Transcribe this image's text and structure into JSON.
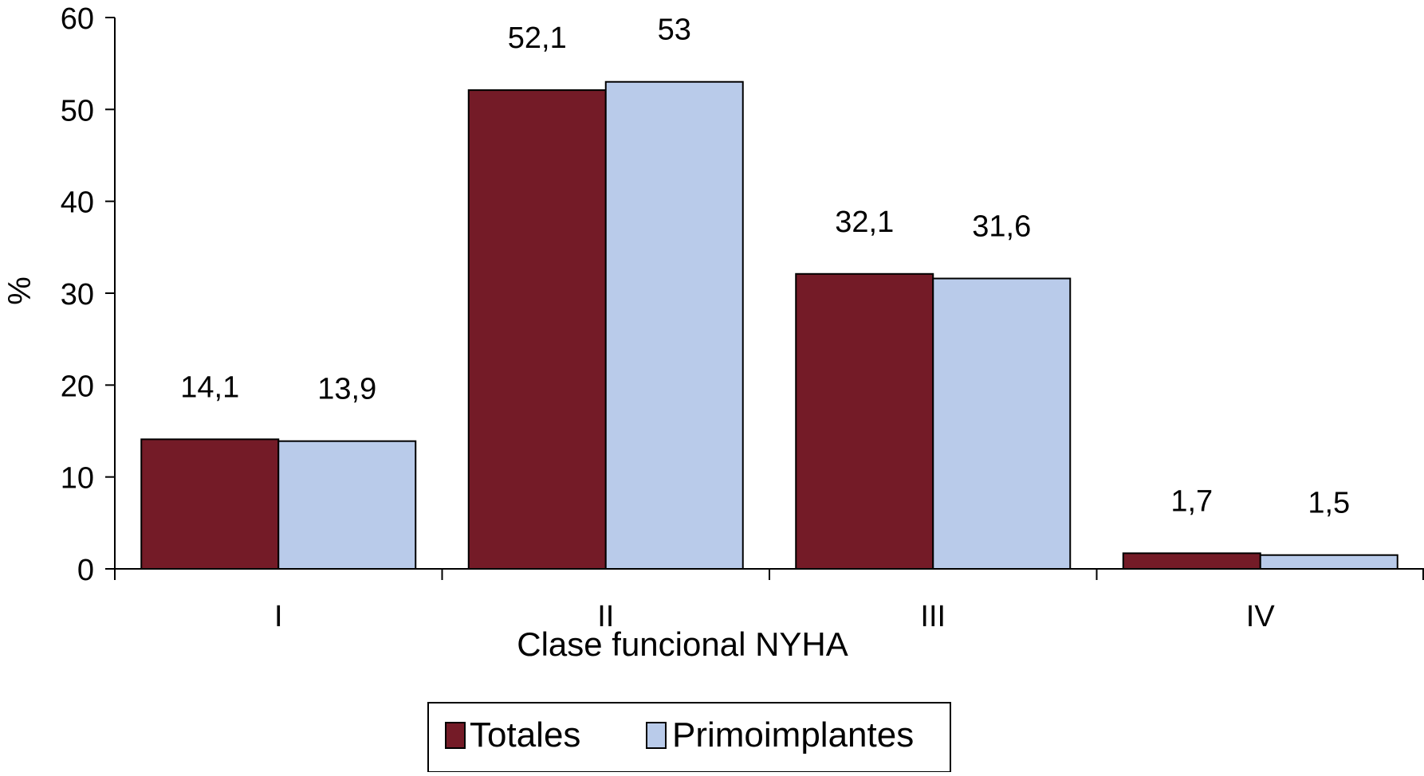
{
  "chart_data": {
    "type": "bar",
    "title": "",
    "xlabel": "Clase funcional NYHA",
    "ylabel": "%",
    "categories": [
      "I",
      "II",
      "III",
      "IV"
    ],
    "series": [
      {
        "name": "Totales",
        "color": "#741b27",
        "values": [
          14.1,
          52.1,
          32.1,
          1.7
        ],
        "labels": [
          "14,1",
          "52,1",
          "32,1",
          "1,7"
        ]
      },
      {
        "name": "Primoimplantes",
        "color": "#b9cbea",
        "values": [
          13.9,
          53,
          31.6,
          1.5
        ],
        "labels": [
          "13,9",
          "53",
          "31,6",
          "1,5"
        ]
      }
    ],
    "ylim": [
      0,
      60
    ],
    "yticks": [
      0,
      10,
      20,
      30,
      40,
      50,
      60
    ],
    "grid": false,
    "legend_position": "bottom-center"
  }
}
